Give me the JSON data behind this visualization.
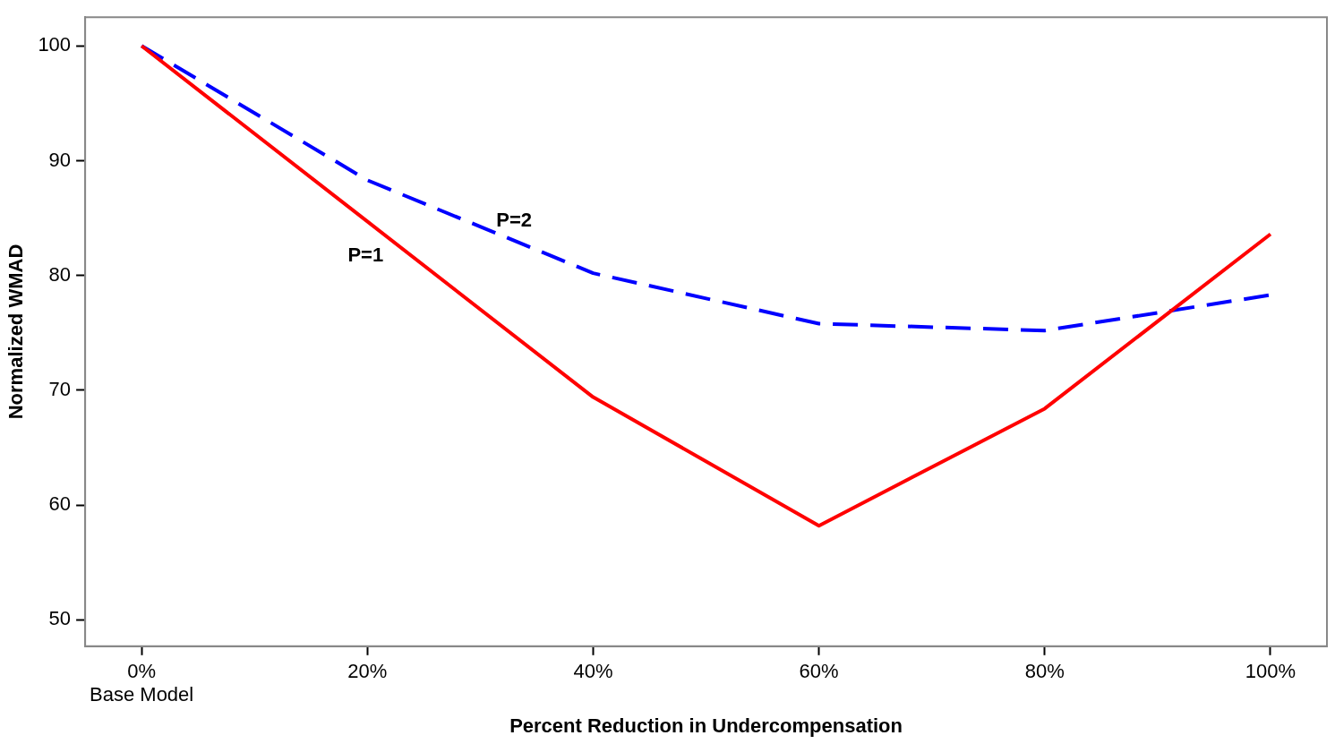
{
  "chart_data": {
    "type": "line",
    "xlabel": "Percent Reduction in Undercompensation",
    "ylabel": "Normalized WMAD",
    "x": [
      0,
      20,
      40,
      60,
      80,
      100
    ],
    "series": [
      {
        "name": "P=1",
        "color": "#ff0000",
        "values": [
          100,
          84.7,
          69.4,
          58.2,
          68.4,
          83.6
        ],
        "line_style": "solid"
      },
      {
        "name": "P=2",
        "color": "#0000ff",
        "values": [
          100,
          88.3,
          80.2,
          75.8,
          75.2,
          78.3
        ],
        "line_style": "dashed"
      }
    ],
    "xlim": [
      -5,
      105
    ],
    "xticks": [
      {
        "value": 0,
        "label": "0%\nBase Model"
      },
      {
        "value": 20,
        "label": "20%"
      },
      {
        "value": 40,
        "label": "40%"
      },
      {
        "value": 60,
        "label": "60%"
      },
      {
        "value": 80,
        "label": "80%"
      },
      {
        "value": 100,
        "label": "100%"
      }
    ],
    "ylim": [
      47.7,
      102.5
    ],
    "yticks": [
      50,
      60,
      70,
      80,
      90,
      100
    ],
    "grid": false,
    "legend": false,
    "marker": "none"
  }
}
